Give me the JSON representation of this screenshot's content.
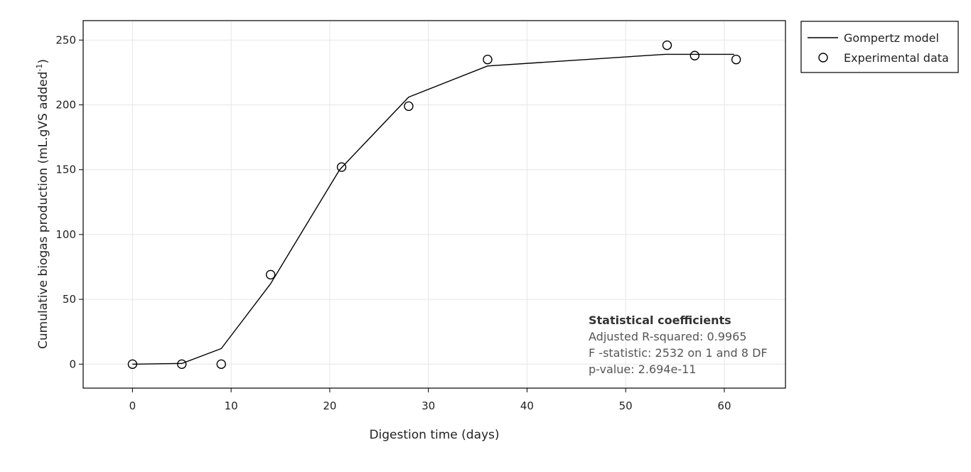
{
  "chart_data": {
    "type": "scatter",
    "xlabel": "Digestion time (days)",
    "ylabel": "Cumulative biogas production (mL.gVS added",
    "ylabel_sup": "-1",
    "ylabel_close": ")",
    "xlim": [
      -5,
      66.2
    ],
    "ylim": [
      -18.5,
      265
    ],
    "xticks": [
      0,
      10,
      20,
      30,
      40,
      50,
      60
    ],
    "yticks": [
      0,
      50,
      100,
      150,
      200,
      250
    ],
    "grid": true,
    "legend_position": "top-right, outside plot",
    "series": [
      {
        "name": "Gompertz model",
        "kind": "line",
        "color": "#000000",
        "x": [
          0,
          5,
          9,
          14,
          21,
          28,
          36,
          54,
          57,
          61
        ],
        "y": [
          0,
          0.5,
          12,
          62,
          150,
          206,
          230,
          239,
          239,
          239
        ]
      },
      {
        "name": "Experimental data",
        "kind": "marker-open-circle",
        "color": "#000000",
        "x": [
          0,
          5,
          9,
          14,
          21.2,
          28,
          36,
          54.2,
          57,
          61.2
        ],
        "y": [
          0,
          0,
          0,
          69,
          152,
          199,
          235,
          246,
          238,
          235
        ]
      }
    ],
    "annotation": {
      "title": "Statistical coefficients",
      "lines": [
        "Adjusted R-squared: 0.9965",
        "F -statistic: 2532 on 1 and 8 DF",
        "p-value: 2.694e-11"
      ]
    }
  }
}
